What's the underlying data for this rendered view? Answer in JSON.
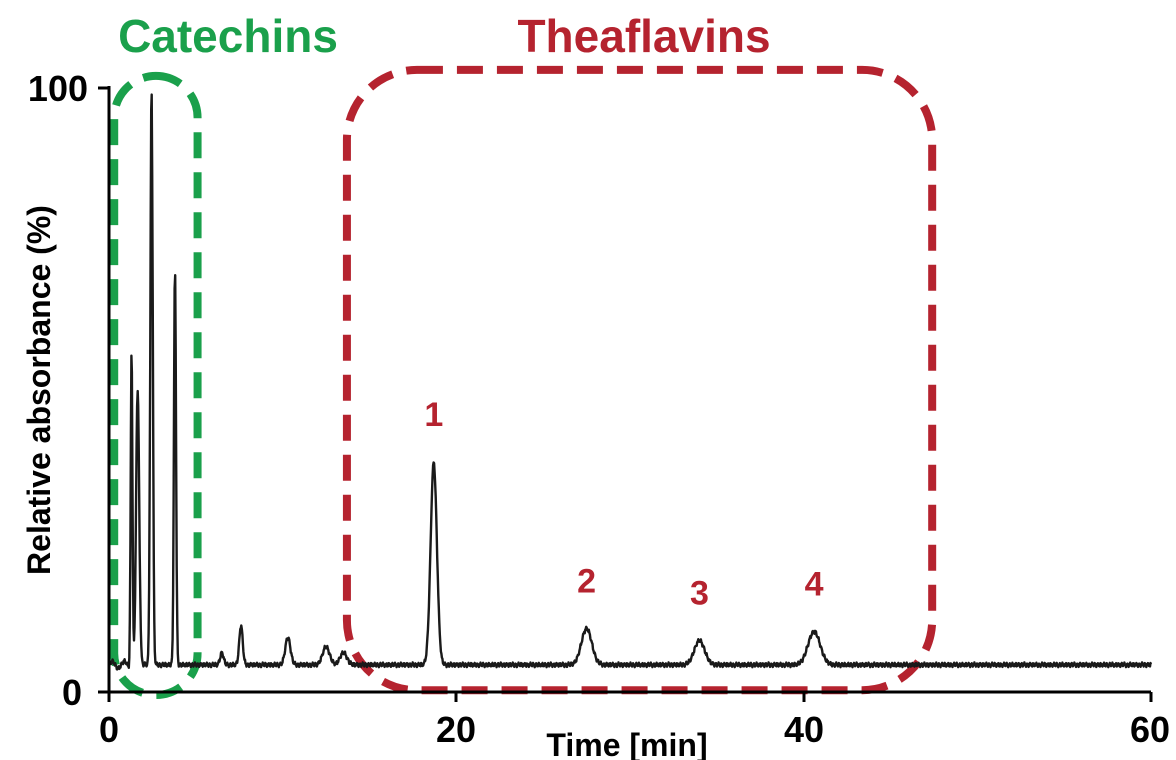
{
  "chart_data": {
    "type": "line",
    "xlabel": "Time [min]",
    "ylabel": "Relative absorbance (%)",
    "xlim": [
      0,
      60
    ],
    "ylim": [
      0,
      100
    ],
    "x_ticks": [
      "0",
      "20",
      "40",
      "60"
    ],
    "y_ticks": [
      "0",
      "100"
    ],
    "grid": false,
    "line_color": "#1a1a1a",
    "baseline": 4.5,
    "peaks": [
      {
        "x": 1.3,
        "y": 57,
        "w": 0.05
      },
      {
        "x": 1.65,
        "y": 50,
        "w": 0.09
      },
      {
        "x": 2.45,
        "y": 100,
        "w": 0.07
      },
      {
        "x": 3.8,
        "y": 70,
        "w": 0.06
      },
      {
        "x": 6.5,
        "y": 6.5,
        "w": 0.1
      },
      {
        "x": 7.6,
        "y": 11,
        "w": 0.1
      },
      {
        "x": 10.3,
        "y": 9,
        "w": 0.15
      },
      {
        "x": 12.5,
        "y": 7.5,
        "w": 0.2
      },
      {
        "x": 13.5,
        "y": 6.5,
        "w": 0.2
      },
      {
        "x": 18.7,
        "y": 38,
        "w": 0.18
      },
      {
        "x": 27.5,
        "y": 10.5,
        "w": 0.3
      },
      {
        "x": 34.0,
        "y": 8.5,
        "w": 0.3
      },
      {
        "x": 40.6,
        "y": 10,
        "w": 0.35
      }
    ],
    "groups": [
      {
        "name": "Catechins",
        "color": "#1aa04b",
        "x_range": [
          0.3,
          5.1
        ],
        "y_range": [
          -0.5,
          102
        ]
      },
      {
        "name": "Theaflavins",
        "color": "#b5232f",
        "x_range": [
          13.7,
          47.4
        ],
        "y_range": [
          0.3,
          103
        ]
      }
    ],
    "annotations": [
      {
        "text": "1",
        "x": 18.7,
        "y": 44
      },
      {
        "text": "2",
        "x": 27.5,
        "y": 16.5
      },
      {
        "text": "3",
        "x": 34.0,
        "y": 14.5
      },
      {
        "text": "4",
        "x": 40.6,
        "y": 16
      }
    ],
    "annotation_color": "#b5232f"
  }
}
